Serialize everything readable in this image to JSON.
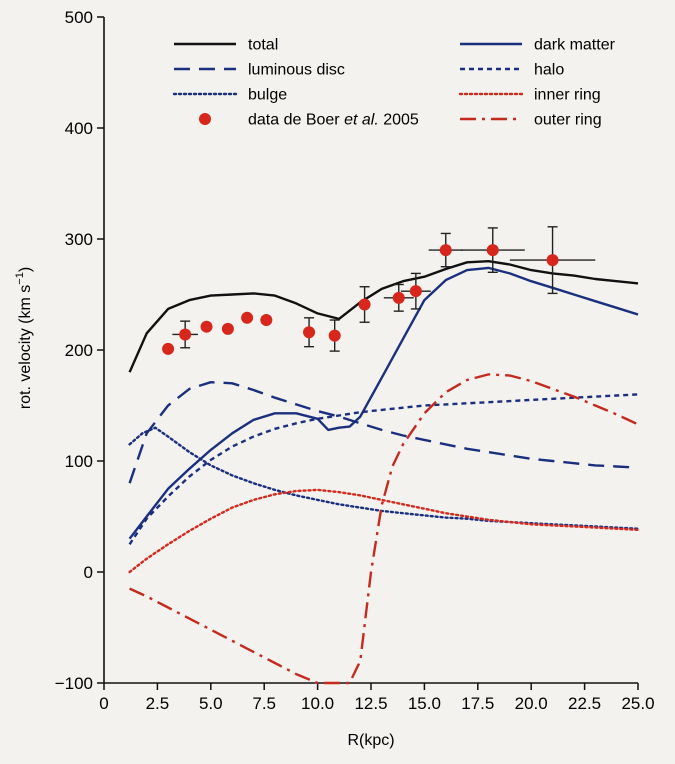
{
  "chart_data": {
    "type": "line",
    "xlabel": "R(kpc)",
    "ylabel": "rot. velocity (km s",
    "ylabel_sup": "−1",
    "ylabel_close": ")",
    "xlim": [
      0,
      25
    ],
    "ylim": [
      -100,
      500
    ],
    "x_ticks": [
      "0",
      "2.5",
      "5.0",
      "7.5",
      "10.0",
      "12.5",
      "15.0",
      "17.5",
      "20.0",
      "22.5",
      "25.0"
    ],
    "x_tick_values": [
      0,
      2.5,
      5.0,
      7.5,
      10.0,
      12.5,
      15.0,
      17.5,
      20.0,
      22.5,
      25.0
    ],
    "y_ticks": [
      "−100",
      "0",
      "100",
      "200",
      "300",
      "400",
      "500"
    ],
    "y_tick_values": [
      -100,
      0,
      100,
      200,
      300,
      400,
      500
    ],
    "grid": false,
    "legend_position": "top",
    "series": [
      {
        "name": "total",
        "color": "#111111",
        "dash": "solid",
        "x": [
          1.2,
          2,
          3,
          4,
          5,
          6,
          7,
          8,
          9,
          10,
          11,
          12,
          13,
          14,
          15,
          16,
          17,
          18,
          19,
          20,
          21,
          22,
          23,
          24,
          25
        ],
        "y": [
          180,
          215,
          237,
          245,
          249,
          250,
          251,
          249,
          242,
          233,
          228,
          243,
          255,
          262,
          266,
          273,
          279,
          280,
          277,
          272,
          269,
          267,
          264,
          262,
          260
        ]
      },
      {
        "name": "luminous disc",
        "color": "#1b2f7f",
        "dash": "longdash",
        "x": [
          1.2,
          2,
          3,
          4,
          5,
          6,
          7,
          8,
          9,
          10,
          11,
          12,
          13,
          14,
          15,
          16,
          17,
          18,
          19,
          20,
          21,
          22,
          23,
          24,
          25
        ],
        "y": [
          80,
          125,
          150,
          165,
          171,
          170,
          164,
          157,
          151,
          145,
          140,
          134,
          128,
          123,
          119,
          115,
          111,
          108,
          105,
          102,
          100,
          98,
          96,
          95,
          94
        ]
      },
      {
        "name": "bulge",
        "color": "#1b2f7f",
        "dash": "dotted",
        "x": [
          1.2,
          1.8,
          2.4,
          3,
          4,
          5,
          6,
          7,
          8,
          9,
          10,
          11,
          12,
          13,
          14,
          15,
          16,
          17,
          18,
          19,
          20,
          21,
          22,
          23,
          24,
          25
        ],
        "y": [
          115,
          125,
          130,
          122,
          108,
          96,
          87,
          80,
          74,
          69,
          65,
          61,
          58,
          55,
          53,
          51,
          49,
          48,
          46,
          45,
          44,
          43,
          42,
          41,
          40,
          39
        ]
      },
      {
        "name": "dark matter",
        "color": "#1b2f7f",
        "dash": "solid",
        "x": [
          1.2,
          2,
          3,
          4,
          5,
          6,
          7,
          8,
          9,
          10,
          10.5,
          11,
          11.5,
          12,
          13,
          14,
          15,
          16,
          17,
          18,
          19,
          20,
          21,
          22,
          23,
          24,
          25
        ],
        "y": [
          30,
          50,
          75,
          93,
          110,
          125,
          137,
          143,
          143,
          138,
          128,
          130,
          131,
          140,
          175,
          210,
          245,
          263,
          272,
          274,
          269,
          262,
          256,
          250,
          244,
          238,
          232
        ]
      },
      {
        "name": "halo",
        "color": "#1b2f7f",
        "dash": "shortdash",
        "x": [
          1.2,
          2,
          3,
          4,
          5,
          6,
          7,
          8,
          9,
          10,
          11,
          12,
          13,
          14,
          15,
          16,
          17,
          18,
          19,
          20,
          21,
          22,
          23,
          24,
          25
        ],
        "y": [
          25,
          48,
          68,
          86,
          101,
          113,
          122,
          129,
          134,
          138,
          141,
          144,
          146,
          148,
          150,
          151,
          152,
          153,
          154,
          155,
          156,
          157,
          158,
          159,
          160
        ]
      },
      {
        "name": "inner ring",
        "color": "#d42a1e",
        "dash": "dotted",
        "x": [
          1.2,
          2,
          3,
          4,
          5,
          6,
          7,
          8,
          9,
          10,
          11,
          12,
          13,
          14,
          15,
          16,
          17,
          18,
          19,
          20,
          21,
          22,
          23,
          24,
          25
        ],
        "y": [
          0,
          12,
          25,
          37,
          48,
          58,
          65,
          70,
          73,
          74,
          72,
          69,
          65,
          61,
          57,
          53,
          50,
          47,
          45,
          43,
          42,
          41,
          40,
          39,
          38
        ]
      },
      {
        "name": "outer ring",
        "color": "#c62a1e",
        "dash": "dashdot",
        "x": [
          1.2,
          2,
          3,
          4,
          5,
          6,
          7,
          8,
          9,
          10,
          11,
          11.5,
          12,
          12.5,
          13,
          13.5,
          14,
          15,
          16,
          17,
          18,
          19,
          20,
          21,
          22,
          23,
          24,
          25
        ],
        "y": [
          -15,
          -22,
          -32,
          -42,
          -52,
          -62,
          -72,
          -82,
          -92,
          -102,
          -107,
          -105,
          -80,
          0,
          60,
          95,
          115,
          143,
          162,
          173,
          178,
          177,
          172,
          165,
          158,
          150,
          142,
          133
        ]
      }
    ],
    "observations": {
      "name": "data de Boer ",
      "name_italic": "et al.",
      "name_suffix": " 2005",
      "color": "#d7261b",
      "points": [
        {
          "x": 3.0,
          "y": 201,
          "xerr": 0,
          "yerr": 0
        },
        {
          "x": 3.8,
          "y": 214,
          "xerr": 0.6,
          "yerr": 12
        },
        {
          "x": 4.8,
          "y": 221,
          "xerr": 0,
          "yerr": 0
        },
        {
          "x": 5.8,
          "y": 219,
          "xerr": 0,
          "yerr": 0
        },
        {
          "x": 6.7,
          "y": 229,
          "xerr": 0,
          "yerr": 0
        },
        {
          "x": 7.6,
          "y": 227,
          "xerr": 0,
          "yerr": 0
        },
        {
          "x": 9.6,
          "y": 216,
          "xerr": 0,
          "yerr": 13
        },
        {
          "x": 10.8,
          "y": 213,
          "xerr": 0,
          "yerr": 14
        },
        {
          "x": 12.2,
          "y": 241,
          "xerr": 0,
          "yerr": 16
        },
        {
          "x": 13.8,
          "y": 247,
          "xerr": 0.7,
          "yerr": 12
        },
        {
          "x": 14.6,
          "y": 253,
          "xerr": 0.7,
          "yerr": 16
        },
        {
          "x": 16.0,
          "y": 290,
          "xerr": 0.8,
          "yerr": 15
        },
        {
          "x": 18.2,
          "y": 290,
          "xerr": 1.5,
          "yerr": 20
        },
        {
          "x": 21.0,
          "y": 281,
          "xerr": 2.0,
          "yerr": 30
        }
      ]
    }
  }
}
